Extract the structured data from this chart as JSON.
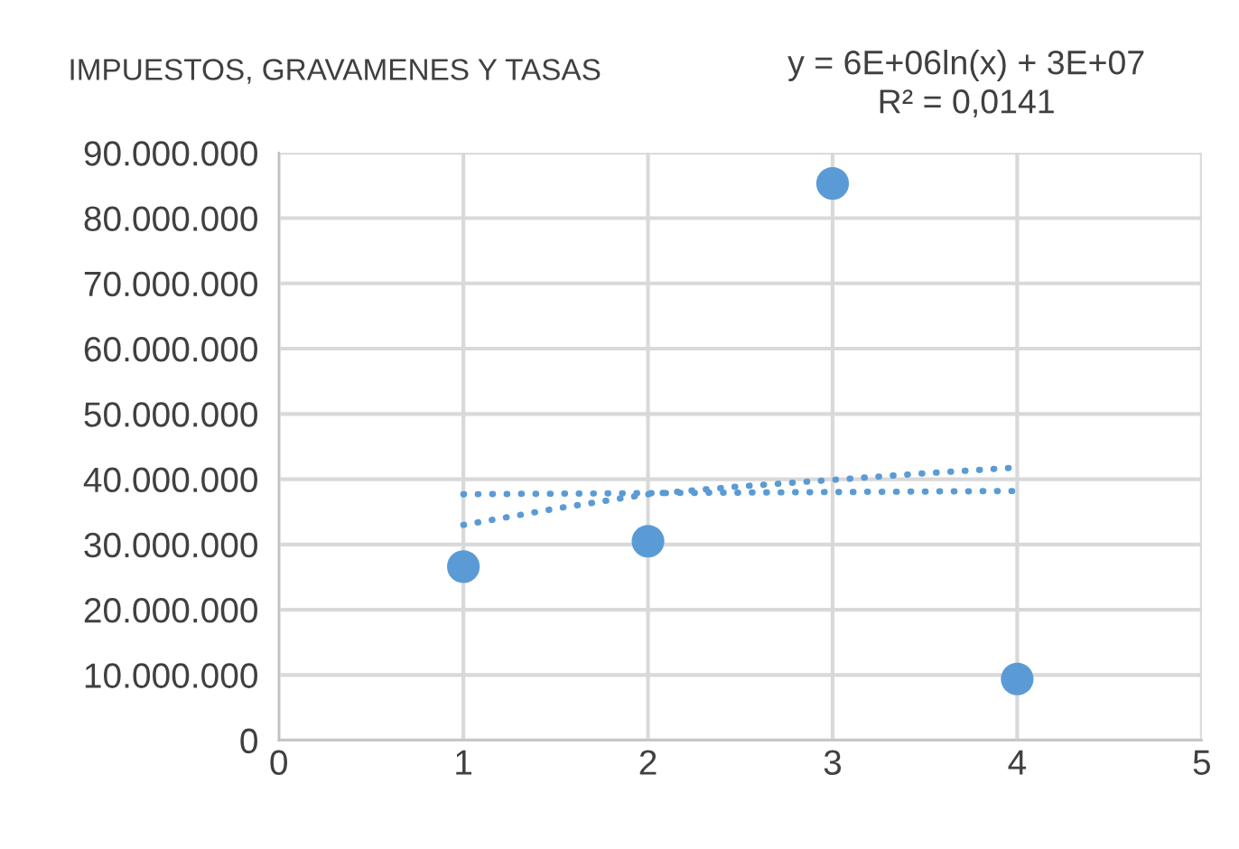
{
  "chart_data": {
    "type": "scatter",
    "title": "IMPUESTOS, GRAVAMENES Y TASAS",
    "annotations": [
      "y = 6E+06ln(x) + 3E+07\nR² = 0,0141"
    ],
    "x": [
      1,
      2,
      3,
      4
    ],
    "series": [
      {
        "color": "#5b9bd5",
        "values": [
          26600000,
          30500000,
          85300000,
          9400000
        ],
        "marker": "circle"
      },
      {
        "type": "line",
        "color": "#5b9bd5",
        "x": [
          1,
          1.5,
          2,
          2.5,
          3,
          3.5,
          4
        ],
        "values": [
          33000000,
          35500000,
          37700000,
          38900000,
          39900000,
          40900000,
          41800000
        ],
        "line_style": "dotted",
        "marker": "none"
      },
      {
        "type": "line",
        "color": "#5b9bd5",
        "x": [
          1,
          4
        ],
        "values": [
          37700000,
          38200000
        ],
        "line_style": "dotted",
        "marker": "none"
      }
    ],
    "xlim": [
      0,
      5
    ],
    "xticks": [
      0,
      1,
      2,
      3,
      4,
      5
    ],
    "ylim": [
      0,
      90000000
    ],
    "yticks": [
      0,
      {
        "value": 10000000,
        "label": "10.000.000"
      },
      {
        "value": 20000000,
        "label": "20.000.000"
      },
      {
        "value": 30000000,
        "label": "30.000.000"
      },
      {
        "value": 40000000,
        "label": "40.000.000"
      },
      {
        "value": 50000000,
        "label": "50.000.000"
      },
      {
        "value": 60000000,
        "label": "60.000.000"
      },
      {
        "value": 70000000,
        "label": "70.000.000"
      },
      {
        "value": 80000000,
        "label": "80.000.000"
      },
      {
        "value": 90000000,
        "label": "90.000.000"
      }
    ],
    "grid": true,
    "legend": false
  }
}
